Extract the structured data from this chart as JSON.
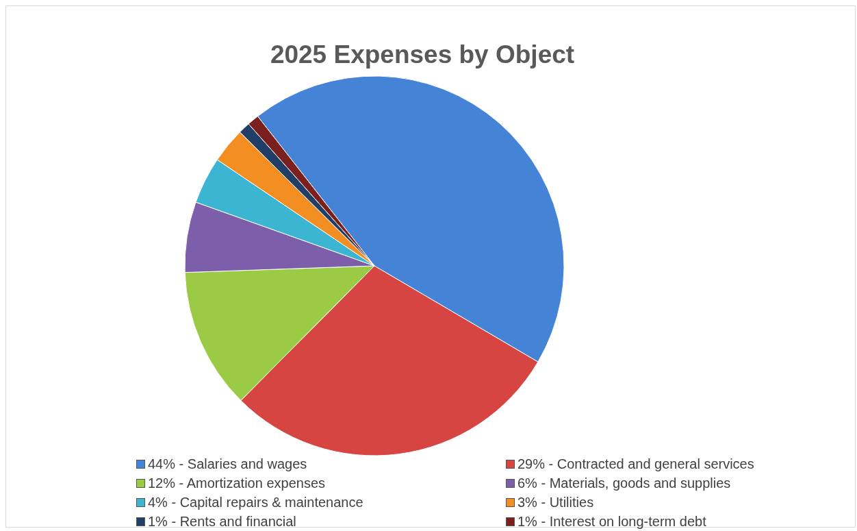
{
  "chart_data": {
    "type": "pie",
    "title": "2025 Expenses by Object",
    "categories": [
      "44% - Salaries and wages",
      "29% - Contracted and general services",
      "12% - Amortization expenses",
      "6% - Materials, goods and supplies",
      "4% - Capital repairs & maintenance",
      "3% - Utilities",
      "1% - Rents and financial",
      "1% - Interest on long-term debt"
    ],
    "values": [
      44,
      29,
      12,
      6,
      4,
      3,
      1,
      1
    ],
    "colors": [
      "#4483d6",
      "#d64541",
      "#9bcb45",
      "#7d5eab",
      "#3cb5d3",
      "#f38f22",
      "#213f66",
      "#7b1f1f"
    ],
    "legend": "bottom"
  }
}
